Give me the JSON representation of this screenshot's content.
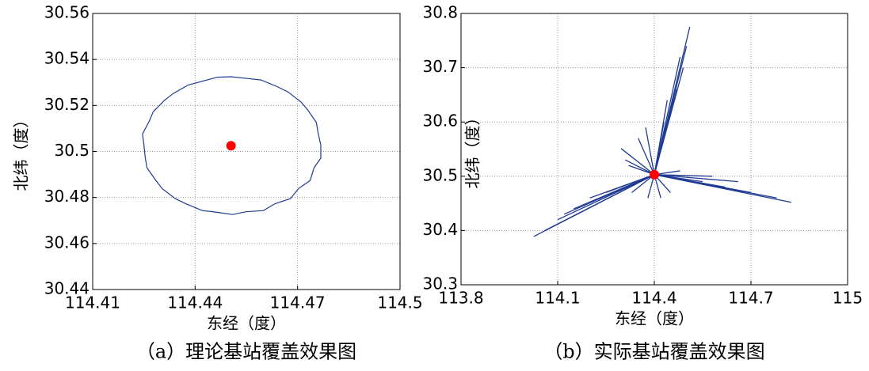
{
  "chart_data": [
    {
      "type": "ring",
      "caption": "（a）理论基站覆盖效果图",
      "xlabel": "东经（度）",
      "ylabel": "北纬（度）",
      "xlim": [
        114.41,
        114.5
      ],
      "xticks": [
        114.41,
        114.44,
        114.47,
        114.5
      ],
      "ylim": [
        30.44,
        30.56
      ],
      "yticks": [
        30.44,
        30.46,
        30.48,
        30.5,
        30.52,
        30.54,
        30.56
      ],
      "grid": true,
      "station": {
        "x": 114.4505,
        "y": 30.5025,
        "color": "#ff0000"
      },
      "coverage": {
        "color": "#1f3a93",
        "x": [
          114.4768,
          114.476,
          114.4755,
          114.473,
          114.471,
          114.4672,
          114.464,
          114.4593,
          114.4555,
          114.4505,
          114.4465,
          114.4415,
          114.438,
          114.4336,
          114.431,
          114.4277,
          114.4266,
          114.4246,
          114.425,
          114.4254,
          114.4259,
          114.4285,
          114.4304,
          114.4342,
          114.4374,
          114.4421,
          114.4458,
          114.451,
          114.4549,
          114.46,
          114.4634,
          114.4679,
          114.4703,
          114.4737,
          114.4748,
          114.4768,
          114.4768
        ],
        "y": [
          30.5027,
          30.5082,
          30.5126,
          30.518,
          30.5215,
          30.5259,
          30.5282,
          30.5311,
          30.5317,
          30.5325,
          30.5323,
          30.5303,
          30.5289,
          30.5252,
          30.5222,
          30.5172,
          30.5133,
          30.5076,
          30.5027,
          30.4972,
          30.4929,
          30.4874,
          30.4838,
          30.4795,
          30.4772,
          30.4743,
          30.4737,
          30.4726,
          30.4738,
          30.4743,
          30.4773,
          30.4795,
          30.4839,
          30.4874,
          30.4929,
          30.4971,
          30.5027
        ]
      }
    },
    {
      "type": "radial",
      "caption": "（b）实际基站覆盖效果图",
      "xlabel": "东经（度）",
      "ylabel": "北纬（度）",
      "xlim": [
        113.8,
        115
      ],
      "xticks": [
        113.8,
        114.1,
        114.4,
        114.7,
        115
      ],
      "ylim": [
        30.3,
        30.8
      ],
      "yticks": [
        30.3,
        30.4,
        30.5,
        30.6,
        30.7,
        30.8
      ],
      "grid": true,
      "station": {
        "x": 114.4,
        "y": 30.503,
        "color": "#ff0000"
      },
      "coverage": {
        "color": "#1f3a93",
        "x": [
          114.51,
          114.5,
          114.49,
          114.47,
          114.45,
          114.43,
          114.44,
          114.48,
          114.825,
          114.78,
          114.7,
          114.62,
          114.66,
          114.55,
          114.58,
          114.026,
          114.06,
          114.1,
          114.15,
          114.2,
          114.25,
          114.12,
          114.297,
          114.31,
          114.373,
          114.35,
          114.33,
          114.38,
          114.42,
          114.45,
          114.32,
          114.48
        ],
        "y": [
          30.775,
          30.74,
          30.7,
          30.66,
          30.62,
          30.6,
          30.64,
          30.72,
          30.452,
          30.46,
          30.47,
          30.48,
          30.49,
          30.49,
          30.5,
          30.389,
          30.4,
          30.42,
          30.44,
          30.46,
          30.47,
          30.43,
          30.551,
          30.53,
          30.59,
          30.57,
          30.47,
          30.46,
          30.46,
          30.47,
          30.52,
          30.51
        ]
      }
    }
  ]
}
